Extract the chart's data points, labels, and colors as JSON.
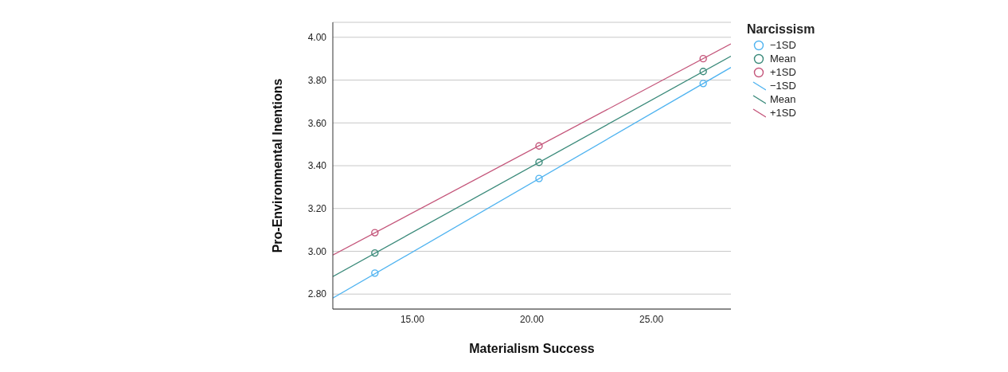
{
  "chart_data": {
    "type": "line",
    "xlabel": "Materialism Success",
    "ylabel": "Pro-Environmental Inentions",
    "legend_title": "Narcissism",
    "legend": "top right",
    "grid": "y",
    "xlim": [
      11.67,
      28.33
    ],
    "xticks": [
      {
        "value": 15,
        "label": "15.00"
      },
      {
        "value": 20,
        "label": "20.00"
      },
      {
        "value": 25,
        "label": "25.00"
      }
    ],
    "ylim": [
      2.73,
      4.07
    ],
    "yticks": [
      {
        "value": 2.8,
        "label": "2.80"
      },
      {
        "value": 3,
        "label": "3.00"
      },
      {
        "value": 3.2,
        "label": "3.20"
      },
      {
        "value": 3.4,
        "label": "3.40"
      },
      {
        "value": 3.6,
        "label": "3.60"
      },
      {
        "value": 3.8,
        "label": "3.80"
      },
      {
        "value": 4,
        "label": "4.00"
      }
    ],
    "series": [
      {
        "name": "−1SD",
        "type": "scatter",
        "marker": "circle",
        "color": "#4fb3f0",
        "x": [
          13.43,
          20.3,
          27.17
        ],
        "values": [
          2.898,
          3.34,
          3.784
        ]
      },
      {
        "name": "Mean",
        "type": "scatter",
        "marker": "circle",
        "color": "#3a8a7a",
        "x": [
          13.43,
          20.3,
          27.17
        ],
        "values": [
          2.992,
          3.416,
          3.84
        ]
      },
      {
        "name": "+1SD",
        "type": "scatter",
        "marker": "circle",
        "color": "#c4557a",
        "x": [
          13.43,
          20.3,
          27.17
        ],
        "values": [
          3.087,
          3.492,
          3.9
        ]
      },
      {
        "name": "−1SD",
        "color": "#4fb3f0",
        "x": [
          11.67,
          28.33
        ],
        "values": [
          2.781,
          3.859
        ]
      },
      {
        "name": "Mean",
        "color": "#3a8a7a",
        "x": [
          11.67,
          28.33
        ],
        "values": [
          2.882,
          3.912
        ]
      },
      {
        "name": "+1SD",
        "color": "#c4557a",
        "x": [
          11.67,
          28.33
        ],
        "values": [
          2.982,
          3.969
        ]
      }
    ]
  }
}
